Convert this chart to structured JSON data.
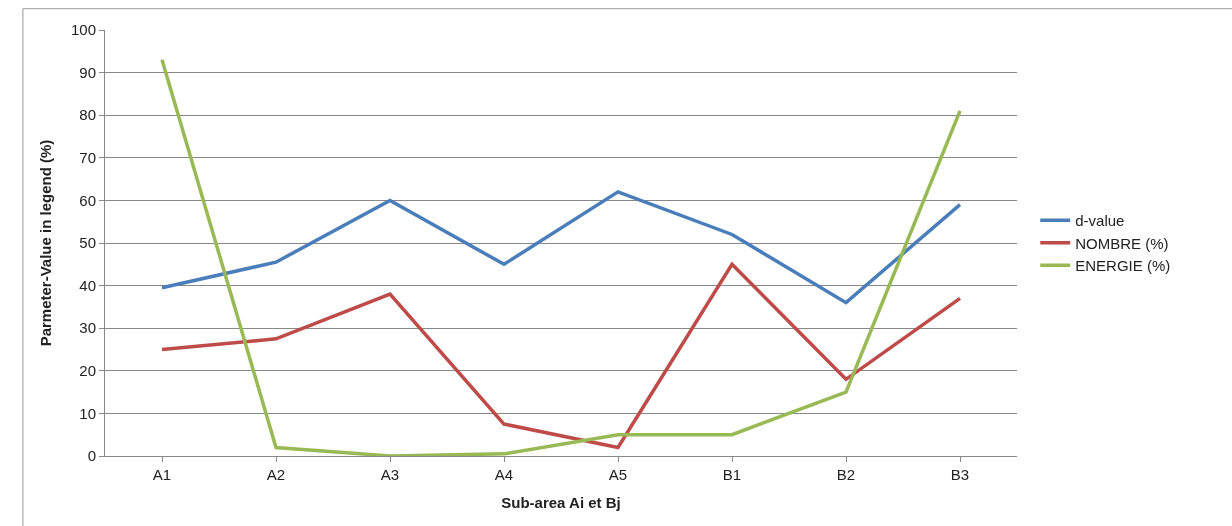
{
  "chart_data": {
    "type": "line",
    "xlabel": "Sub-area Ai et Bj",
    "ylabel": "Parmeter-Value in legend (%)",
    "categories": [
      "A1",
      "A2",
      "A3",
      "A4",
      "A5",
      "B1",
      "B2",
      "B3"
    ],
    "series": [
      {
        "name": "d-value",
        "color": "#4a7ebb",
        "values": [
          39.5,
          45.5,
          60,
          45,
          62,
          52,
          36,
          59
        ]
      },
      {
        "name": "NOMBRE (%)",
        "color": "#be4b48",
        "values": [
          25,
          27.5,
          38,
          7.5,
          2,
          45,
          18,
          37
        ]
      },
      {
        "name": "ENERGIE (%)",
        "color": "#98b954",
        "values": [
          93,
          2,
          0,
          0.5,
          5,
          5,
          15,
          81
        ]
      }
    ],
    "ylim": [
      0,
      100
    ],
    "yticks": [
      0,
      10,
      20,
      30,
      40,
      50,
      60,
      70,
      80,
      90,
      100
    ],
    "grid": "y",
    "legend": "right",
    "marker": "none",
    "line_style": "solid"
  }
}
